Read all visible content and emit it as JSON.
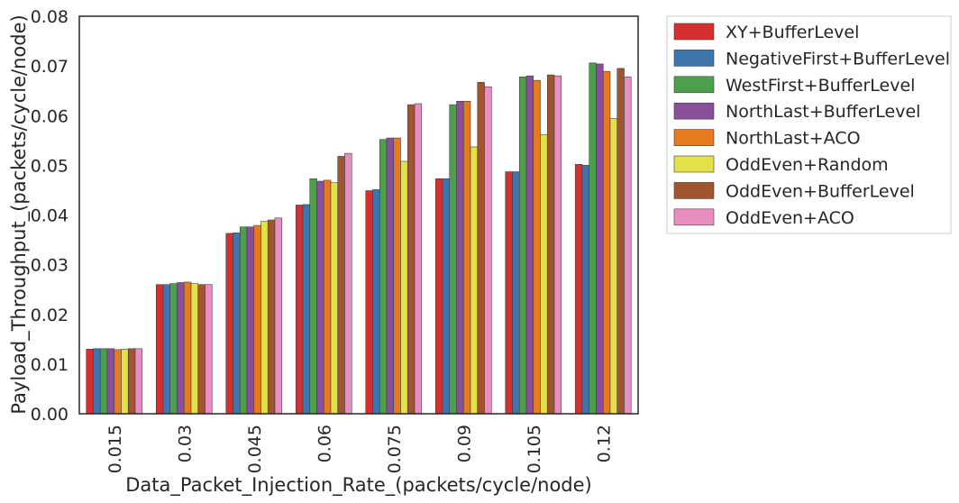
{
  "chart_data": {
    "type": "bar",
    "xlabel": "Data_Packet_Injection_Rate_(packets/cycle/node)",
    "ylabel": "Payload_Throughput_(packets/cycle/node)",
    "categories": [
      "0.015",
      "0.03",
      "0.045",
      "0.06",
      "0.075",
      "0.09",
      "0.105",
      "0.12"
    ],
    "ylim": [
      0,
      0.08
    ],
    "yticks": [
      "0.00",
      "0.01",
      "0.02",
      "0.03",
      "0.04",
      "0.05",
      "0.06",
      "0.07",
      "0.08"
    ],
    "grid": false,
    "legend_position": "outside-top-right",
    "series": [
      {
        "name": "XY+BufferLevel",
        "color": "#d62f2f",
        "values": [
          0.013,
          0.026,
          0.0363,
          0.042,
          0.0449,
          0.0473,
          0.0487,
          0.0502
        ]
      },
      {
        "name": "NegativeFirst+BufferLevel",
        "color": "#3f75ad",
        "values": [
          0.0131,
          0.026,
          0.0364,
          0.0421,
          0.0451,
          0.0473,
          0.0487,
          0.05
        ]
      },
      {
        "name": "WestFirst+BufferLevel",
        "color": "#4e9f4c",
        "values": [
          0.0131,
          0.0262,
          0.0376,
          0.0473,
          0.0552,
          0.0622,
          0.0678,
          0.0706
        ]
      },
      {
        "name": "NorthLast+BufferLevel",
        "color": "#8a4f9b",
        "values": [
          0.0131,
          0.0264,
          0.0376,
          0.0468,
          0.0555,
          0.0629,
          0.068,
          0.0704
        ]
      },
      {
        "name": "NorthLast+ACO",
        "color": "#e57a1e",
        "values": [
          0.0129,
          0.0265,
          0.0379,
          0.047,
          0.0555,
          0.0629,
          0.0671,
          0.0689
        ]
      },
      {
        "name": "OddEven+Random",
        "color": "#e3e04a",
        "values": [
          0.013,
          0.0262,
          0.0387,
          0.0465,
          0.0508,
          0.0537,
          0.0562,
          0.0594
        ]
      },
      {
        "name": "OddEven+BufferLevel",
        "color": "#a0552f",
        "values": [
          0.0131,
          0.026,
          0.039,
          0.0518,
          0.0622,
          0.0667,
          0.0682,
          0.0695
        ]
      },
      {
        "name": "OddEven+ACO",
        "color": "#e88ec0",
        "values": [
          0.0131,
          0.026,
          0.0394,
          0.0524,
          0.0624,
          0.0658,
          0.068,
          0.0678
        ]
      }
    ]
  }
}
